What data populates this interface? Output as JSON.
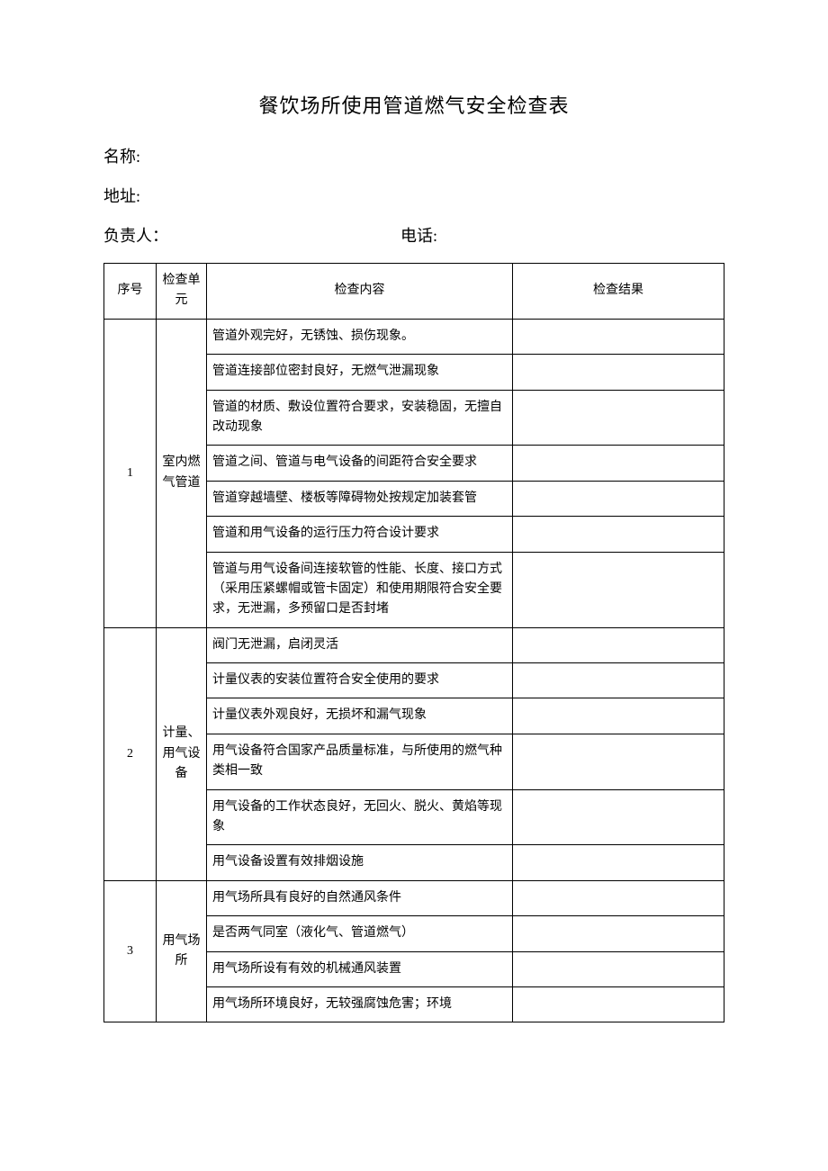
{
  "title": "餐饮场所使用管道燃气安全检查表",
  "info": {
    "name_label": "名称:",
    "address_label": "地址:",
    "manager_label": "负责人：",
    "phone_label": "电话:"
  },
  "headers": {
    "seq": "序号",
    "unit": "检查单元",
    "content": "检查内容",
    "result": "检查结果"
  },
  "groups": [
    {
      "seq": "1",
      "unit": "室内燃气管道",
      "items": [
        "管道外观完好，无锈蚀、损伤现象。",
        "管道连接部位密封良好，无燃气泄漏现象",
        "管道的材质、敷设位置符合要求，安装稳固，无擅自改动现象",
        "管道之间、管道与电气设备的间距符合安全要求",
        "管道穿越墙壁、楼板等障碍物处按规定加装套管",
        "管道和用气设备的运行压力符合设计要求",
        "管道与用气设备间连接软管的性能、长度、接口方式（采用压紧螺帽或管卡固定）和使用期限符合安全要求，无泄漏，多预留口是否封堵"
      ]
    },
    {
      "seq": "2",
      "unit": "计量、用气设备",
      "items": [
        "阀门无泄漏，启闭灵活",
        "计量仪表的安装位置符合安全使用的要求",
        "计量仪表外观良好，无损坏和漏气现象",
        "用气设备符合国家产品质量标准，与所使用的燃气种类相一致",
        "用气设备的工作状态良好，无回火、脱火、黄焰等现象",
        "用气设备设置有效排烟设施"
      ]
    },
    {
      "seq": "3",
      "unit": "用气场所",
      "items": [
        "用气场所具有良好的自然通风条件",
        "是否两气同室（液化气、管道燃气）",
        "用气场所设有有效的机械通风装置",
        "用气场所环境良好，无较强腐蚀危害；环境"
      ]
    }
  ],
  "style": {
    "page_bg": "#ffffff",
    "text_color": "#000000",
    "border_color": "#000000",
    "title_fontsize": 22,
    "info_fontsize": 18,
    "cell_fontsize": 14
  }
}
